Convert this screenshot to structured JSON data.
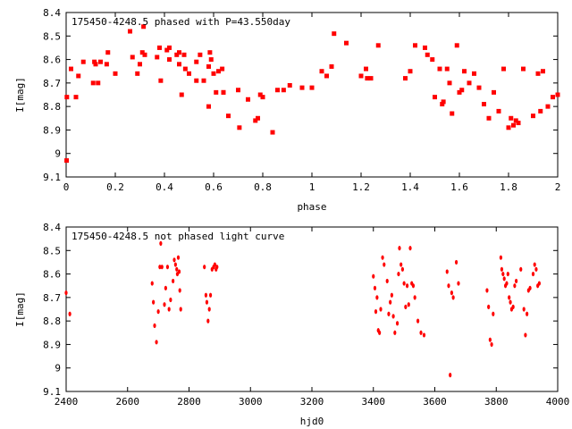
{
  "chart_data": [
    {
      "type": "scatter",
      "title": "175450-4248.5 phased with P=43.550day",
      "xlabel": "phase",
      "ylabel": "I[mag]",
      "xlim": [
        0,
        2
      ],
      "ylim": [
        8.4,
        9.1
      ],
      "y_inverted": true,
      "grid": false,
      "marker_color": "#ff0000",
      "xticks": [
        "0",
        "0.2",
        "0.4",
        "0.6",
        "0.8",
        "1",
        "1.2",
        "1.4",
        "1.6",
        "1.8",
        "2"
      ],
      "yticks": [
        "8.4",
        "8.5",
        "8.6",
        "8.7",
        "8.8",
        "8.9",
        "9",
        "9.1"
      ],
      "x": [
        0.002,
        0.003,
        0.02,
        0.04,
        0.05,
        0.07,
        0.11,
        0.115,
        0.12,
        0.13,
        0.14,
        0.165,
        0.17,
        0.2,
        0.26,
        0.27,
        0.29,
        0.3,
        0.31,
        0.315,
        0.32,
        0.37,
        0.38,
        0.385,
        0.41,
        0.42,
        0.42,
        0.45,
        0.46,
        0.46,
        0.47,
        0.48,
        0.485,
        0.5,
        0.53,
        0.53,
        0.545,
        0.56,
        0.58,
        0.58,
        0.585,
        0.59,
        0.6,
        0.61,
        0.62,
        0.635,
        0.64,
        0.64,
        0.66,
        0.7,
        0.705,
        0.74,
        0.77,
        0.78,
        0.79,
        0.8,
        0.84,
        0.86,
        0.885,
        0.91,
        0.96,
        1.0,
        1.04,
        1.06,
        1.08,
        1.09,
        1.14,
        1.2,
        1.22,
        1.225,
        1.24,
        1.27,
        1.38,
        1.4,
        1.42,
        1.46,
        1.47,
        1.49,
        1.5,
        1.52,
        1.53,
        1.535,
        1.55,
        1.56,
        1.57,
        1.59,
        1.6,
        1.61,
        1.62,
        1.64,
        1.66,
        1.68,
        1.7,
        1.72,
        1.74,
        1.76,
        1.78,
        1.8,
        1.81,
        1.82,
        1.83,
        1.84,
        1.86,
        1.9,
        1.92,
        1.93,
        1.94,
        1.96,
        1.98,
        2.0
      ],
      "y": [
        9.03,
        8.76,
        8.64,
        8.76,
        8.67,
        8.61,
        8.7,
        8.61,
        8.62,
        8.7,
        8.61,
        8.62,
        8.57,
        8.66,
        8.48,
        8.59,
        8.66,
        8.62,
        8.57,
        8.46,
        8.58,
        8.59,
        8.55,
        8.69,
        8.56,
        8.55,
        8.6,
        8.58,
        8.62,
        8.57,
        8.75,
        8.58,
        8.64,
        8.66,
        8.69,
        8.61,
        8.58,
        8.69,
        8.63,
        8.8,
        8.57,
        8.6,
        8.66,
        8.74,
        8.65,
        8.64,
        8.74,
        8.74,
        8.84,
        8.73,
        8.89,
        8.77,
        8.86,
        8.85,
        8.75,
        8.76,
        8.91,
        8.73,
        8.73,
        8.71,
        8.72,
        8.72,
        8.65,
        8.67,
        8.63,
        8.49,
        8.53,
        8.67,
        8.64,
        8.68,
        8.68,
        8.54,
        8.68,
        8.65,
        8.54,
        8.55,
        8.58,
        8.6,
        8.76,
        8.64,
        8.79,
        8.78,
        8.64,
        8.7,
        8.83,
        8.54,
        8.74,
        8.73,
        8.65,
        8.7,
        8.66,
        8.72,
        8.79,
        8.85,
        8.74,
        8.82,
        8.64,
        8.89,
        8.85,
        8.88,
        8.86,
        8.87,
        8.64,
        8.84,
        8.66,
        8.82,
        8.65,
        8.8,
        8.76,
        8.75
      ]
    },
    {
      "type": "scatter",
      "title": "175450-4248.5 not phased light curve",
      "xlabel": "hjd0",
      "ylabel": "I[mag]",
      "xlim": [
        2400,
        4000
      ],
      "ylim": [
        8.4,
        9.1
      ],
      "y_inverted": true,
      "grid": false,
      "marker_color": "#ff0000",
      "xticks": [
        "2400",
        "2600",
        "2800",
        "3000",
        "3200",
        "3400",
        "3600",
        "3800",
        "4000"
      ],
      "yticks": [
        "8.4",
        "8.5",
        "8.6",
        "8.7",
        "8.8",
        "8.9",
        "9",
        "9.1"
      ],
      "x": [
        2400,
        2412,
        2680,
        2684,
        2688,
        2694,
        2700,
        2705,
        2708,
        2712,
        2720,
        2724,
        2730,
        2735,
        2740,
        2748,
        2752,
        2756,
        2760,
        2762,
        2765,
        2768,
        2770,
        2773,
        2850,
        2855,
        2858,
        2862,
        2866,
        2870,
        2875,
        2880,
        2884,
        2888,
        2891,
        3400,
        3405,
        3408,
        3412,
        3416,
        3420,
        3424,
        3430,
        3435,
        3445,
        3450,
        3455,
        3460,
        3465,
        3470,
        3478,
        3482,
        3485,
        3490,
        3495,
        3500,
        3505,
        3510,
        3515,
        3520,
        3525,
        3530,
        3535,
        3545,
        3555,
        3565,
        3640,
        3645,
        3650,
        3655,
        3660,
        3670,
        3677,
        3770,
        3775,
        3780,
        3785,
        3790,
        3815,
        3818,
        3822,
        3826,
        3830,
        3834,
        3838,
        3842,
        3846,
        3850,
        3855,
        3860,
        3865,
        3880,
        3890,
        3895,
        3900,
        3905,
        3910,
        3920,
        3925,
        3930,
        3935,
        3940
      ],
      "y": [
        8.68,
        8.77,
        8.64,
        8.72,
        8.82,
        8.89,
        8.76,
        8.57,
        8.47,
        8.57,
        8.73,
        8.66,
        8.57,
        8.75,
        8.71,
        8.63,
        8.54,
        8.56,
        8.58,
        8.6,
        8.53,
        8.59,
        8.67,
        8.75,
        8.57,
        8.69,
        8.72,
        8.8,
        8.75,
        8.69,
        8.58,
        8.57,
        8.56,
        8.58,
        8.57,
        8.61,
        8.66,
        8.76,
        8.7,
        8.84,
        8.85,
        8.75,
        8.53,
        8.56,
        8.63,
        8.77,
        8.72,
        8.69,
        8.78,
        8.85,
        8.81,
        8.6,
        8.49,
        8.56,
        8.58,
        8.64,
        8.74,
        8.65,
        8.73,
        8.49,
        8.64,
        8.65,
        8.7,
        8.8,
        8.85,
        8.86,
        8.59,
        8.65,
        9.03,
        8.68,
        8.7,
        8.55,
        8.64,
        8.67,
        8.74,
        8.88,
        8.9,
        8.77,
        8.53,
        8.58,
        8.6,
        8.62,
        8.65,
        8.64,
        8.6,
        8.7,
        8.72,
        8.75,
        8.74,
        8.65,
        8.63,
        8.58,
        8.75,
        8.86,
        8.77,
        8.67,
        8.66,
        8.6,
        8.56,
        8.58,
        8.65,
        8.64
      ]
    }
  ]
}
